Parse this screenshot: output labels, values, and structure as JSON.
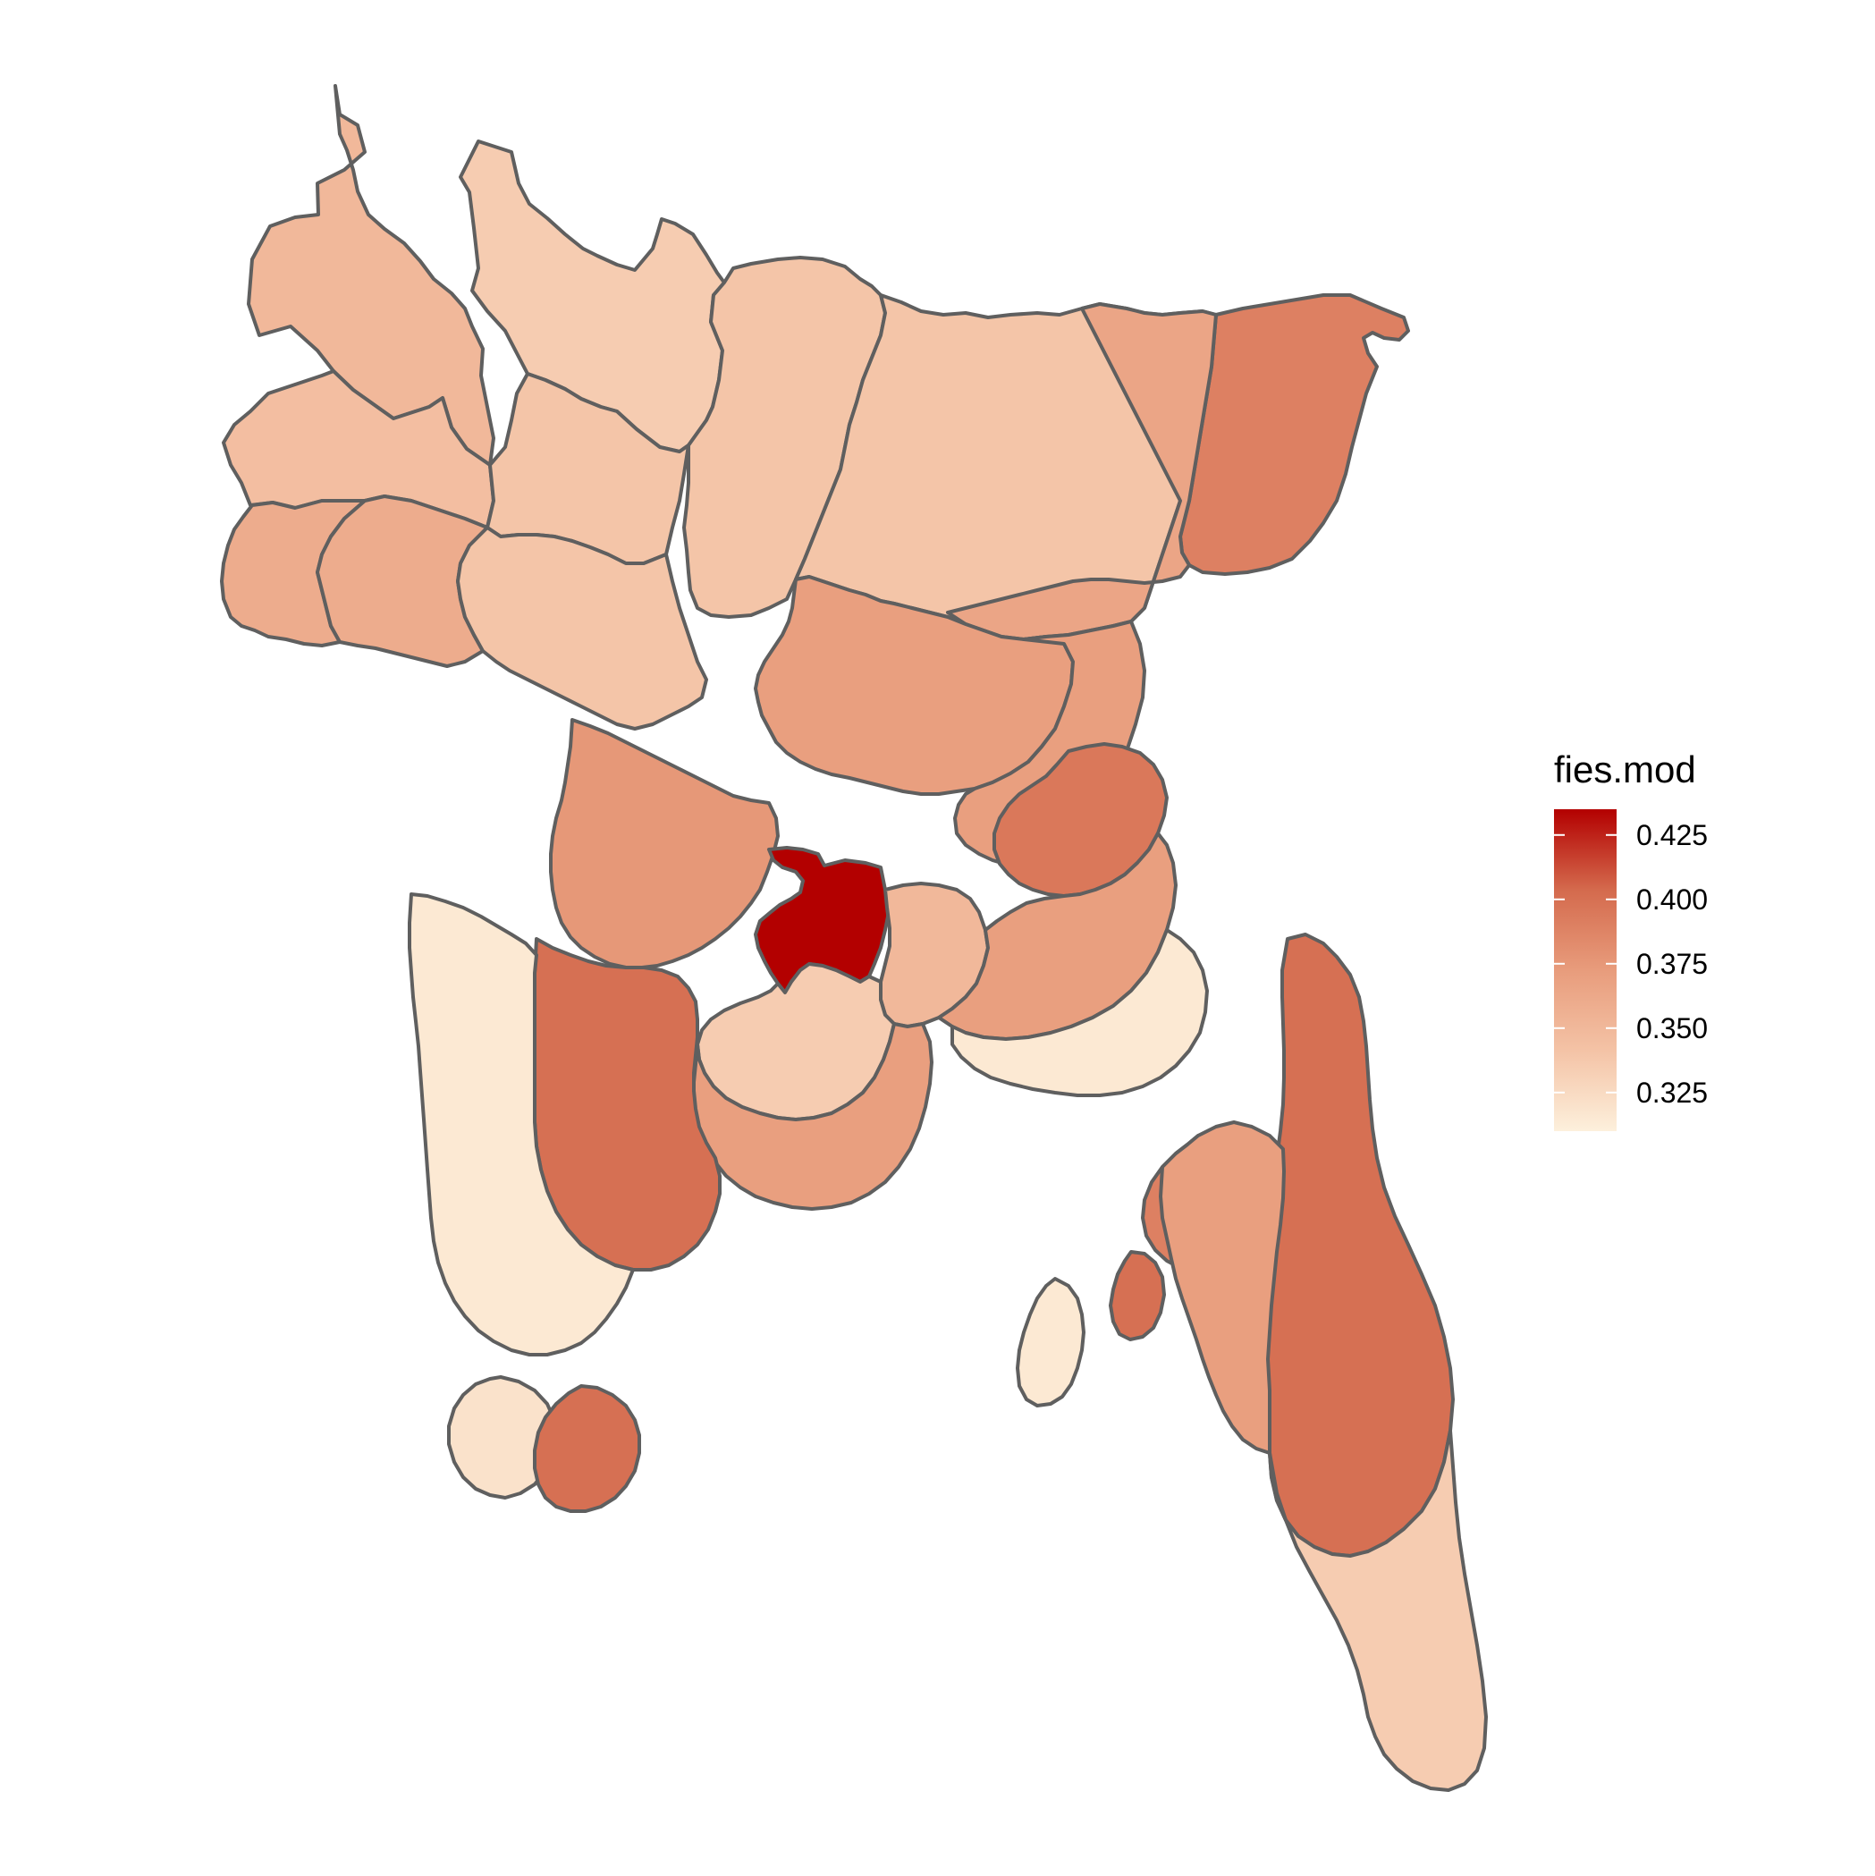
{
  "legend": {
    "title": "fies.mod",
    "ticks": [
      "0.425",
      "0.400",
      "0.375",
      "0.350",
      "0.325"
    ],
    "tick_values": [
      0.425,
      0.4,
      0.375,
      0.35,
      0.325
    ],
    "min_value": 0.31,
    "max_value": 0.435,
    "color_low": "#fdf0dc",
    "color_high": "#b30000"
  },
  "regions": [
    {
      "id": "r1",
      "value": 0.35
    },
    {
      "id": "r2",
      "value": 0.335
    },
    {
      "id": "r3",
      "value": 0.345
    },
    {
      "id": "r4",
      "value": 0.34
    },
    {
      "id": "r5",
      "value": 0.36
    },
    {
      "id": "r6",
      "value": 0.36
    },
    {
      "id": "r7",
      "value": 0.34
    },
    {
      "id": "r8",
      "value": 0.34
    },
    {
      "id": "r9",
      "value": 0.34
    },
    {
      "id": "r10",
      "value": 0.39
    },
    {
      "id": "r11",
      "value": 0.365
    },
    {
      "id": "r12",
      "value": 0.37
    },
    {
      "id": "r13",
      "value": 0.37
    },
    {
      "id": "r14",
      "value": 0.375
    },
    {
      "id": "r15",
      "value": 0.435
    },
    {
      "id": "r16",
      "value": 0.35
    },
    {
      "id": "r17",
      "value": 0.335
    },
    {
      "id": "r18",
      "value": 0.395
    },
    {
      "id": "r19",
      "value": 0.37
    },
    {
      "id": "r20",
      "value": 0.315
    },
    {
      "id": "r21",
      "value": 0.39
    },
    {
      "id": "r22",
      "value": 0.4
    },
    {
      "id": "r23",
      "value": 0.335
    },
    {
      "id": "r24",
      "value": 0.37
    },
    {
      "id": "r25",
      "value": 0.37
    },
    {
      "id": "r26",
      "value": 0.4
    },
    {
      "id": "r27",
      "value": 0.315
    },
    {
      "id": "r28",
      "value": 0.32
    },
    {
      "id": "r29",
      "value": 0.4
    },
    {
      "id": "r30",
      "value": 0.315
    },
    {
      "id": "r31",
      "value": 0.4
    }
  ]
}
